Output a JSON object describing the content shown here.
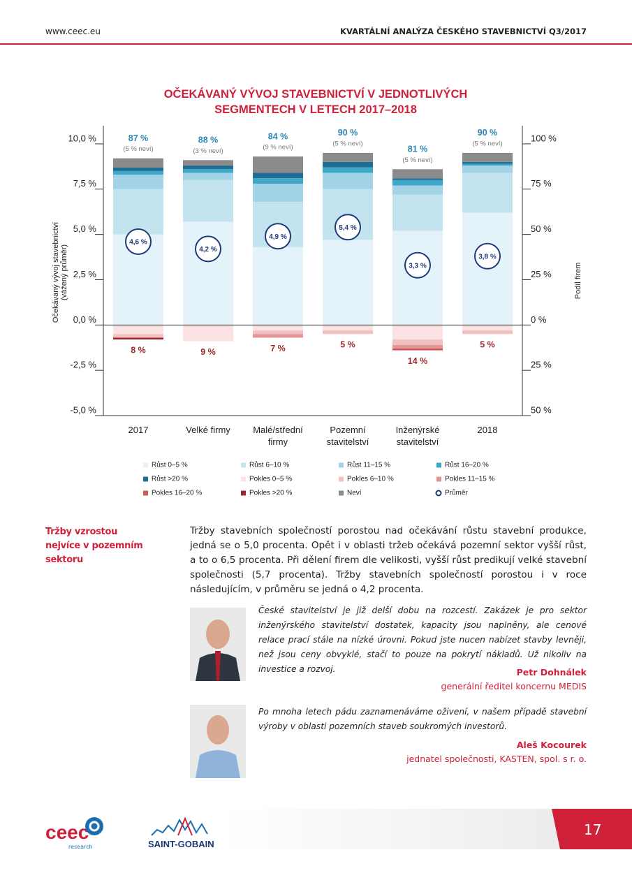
{
  "header": {
    "url": "www.ceec.eu",
    "title": "KVARTÁLNÍ ANALÝZA ČESKÉHO STAVEBNICTVÍ Q3/2017"
  },
  "chart_data": {
    "type": "bar",
    "stacked": true,
    "title": "OČEKÁVANÝ VÝVOJ STAVEBNICTVÍ V JEDNOTLIVÝCH SEGMENTECH V LETECH 2017–2018",
    "y_label": [
      "Očekávaný vývoj stavebnictví",
      "(vážený průměr)"
    ],
    "y2_label": "Podíl firem",
    "categories": [
      "2017",
      "Velké firmy",
      "Malé/střední firmy",
      "Pozemní stavitelství",
      "Inženýrské stavitelství",
      "2018"
    ],
    "ylim": [
      -5,
      11
    ],
    "yticks": [
      {
        "value": -5,
        "label": "-5,0 %"
      },
      {
        "value": -2.5,
        "label": "-2,5 %"
      },
      {
        "value": 0,
        "label": "0,0 %"
      },
      {
        "value": 2.5,
        "label": "2,5 %"
      },
      {
        "value": 5,
        "label": "5,0 %"
      },
      {
        "value": 7.5,
        "label": "7,5 %"
      },
      {
        "value": 10,
        "label": "10,0 %"
      }
    ],
    "y2lim": [
      -50,
      110
    ],
    "y2ticks": [
      {
        "value": -50,
        "label": "50 %"
      },
      {
        "value": -25,
        "label": "25 %"
      },
      {
        "value": 0,
        "label": "0 %"
      },
      {
        "value": 25,
        "label": "25 %"
      },
      {
        "value": 50,
        "label": "50 %"
      },
      {
        "value": 75,
        "label": "75 %"
      },
      {
        "value": 100,
        "label": "100 %"
      }
    ],
    "series": [
      {
        "name": "Růst 0–5 %",
        "color": "#e4f2fa",
        "axis": "y2",
        "values": [
          50,
          57,
          43,
          47,
          52,
          62
        ]
      },
      {
        "name": "Růst 6–10 %",
        "color": "#c3e3ef",
        "axis": "y2",
        "values": [
          25,
          23,
          25,
          28,
          20,
          22
        ]
      },
      {
        "name": "Růst 11–15 %",
        "color": "#a2d3e7",
        "axis": "y2",
        "values": [
          8,
          4,
          10,
          9,
          5,
          4
        ]
      },
      {
        "name": "Růst 16–20 %",
        "color": "#3fa8c8",
        "axis": "y2",
        "values": [
          2,
          2,
          3,
          3,
          3,
          1
        ]
      },
      {
        "name": "Růst >20 %",
        "color": "#1f6e93",
        "axis": "y2",
        "values": [
          2,
          2,
          3,
          3,
          1,
          1
        ]
      },
      {
        "name": "Pokles 0–5 %",
        "color": "#fbe3e4",
        "axis": "y2",
        "values": [
          -5,
          -9,
          -3,
          -3,
          -8,
          -3
        ]
      },
      {
        "name": "Pokles 6–10 %",
        "color": "#f2c1c2",
        "axis": "y2",
        "values": [
          -2,
          0,
          -2,
          -2,
          -3,
          -2
        ]
      },
      {
        "name": "Pokles 11–15 %",
        "color": "#e39596",
        "axis": "y2",
        "values": [
          0,
          0,
          -2,
          0,
          -2,
          0
        ]
      },
      {
        "name": "Pokles 16–20 %",
        "color": "#cf5a5b",
        "axis": "y2",
        "values": [
          0,
          0,
          0,
          0,
          -1,
          0
        ]
      },
      {
        "name": "Pokles >20 %",
        "color": "#9c2a2c",
        "axis": "y2",
        "values": [
          -1,
          0,
          0,
          0,
          0,
          0
        ]
      },
      {
        "name": "Neví",
        "color": "#8b8b8b",
        "axis": "y2",
        "values": [
          5,
          3,
          9,
          5,
          5,
          5
        ]
      },
      {
        "name": "Průměr",
        "color": "#1e3a7a",
        "axis": "y",
        "type": "marker",
        "values": [
          4.6,
          4.2,
          4.9,
          5.4,
          3.3,
          3.8
        ],
        "value_labels": [
          "4,6 %",
          "4,2 %",
          "4,9 %",
          "5,4 %",
          "3,3 %",
          "3,8 %"
        ]
      }
    ],
    "growth_labels": [
      "87 %",
      "88 %",
      "84 %",
      "90 %",
      "81 %",
      "90 %"
    ],
    "unknown_labels": [
      "(5 % neví)",
      "(3 % neví)",
      "(9 % neví)",
      "(5 % neví)",
      "(5 % neví)",
      "(5 % neví)"
    ],
    "decline_labels": [
      "8 %",
      "9 %",
      "7 %",
      "5 %",
      "14 %",
      "5 %"
    ]
  },
  "section": {
    "heading": "Tržby vzrostou nejvíce v pozemním sektoru",
    "text": "Tržby stavebních společností porostou nad očekávání růstu stavební produkce, jedná se o 5,0 procenta. Opět i v oblasti tržeb očekává pozemní sektor vyšší růst, a to o 6,5 procenta. Při dělení firem dle velikosti, vyšší růst predikují velké stavební společnosti (5,7 procenta). Tržby stavebních společností porostou i v roce následujícím, v průměru se jedná o 4,2 procenta."
  },
  "quotes": [
    {
      "text": "České stavitelství je již delší dobu na rozcestí. Zakázek je pro sektor inženýrského stavitelství dostatek, kapacity jsou naplněny, ale cenové relace prací stále na nízké úrovni. Pokud jste nucen nabízet stavby levněji, než jsou ceny obvyklé, stačí to pouze na pokrytí nákladů. Už nikoliv na investice a rozvoj.",
      "name": "Petr Dohnálek",
      "role": "generální ředitel koncernu MEDIS"
    },
    {
      "text": "Po mnoha letech pádu zaznamenáváme oživení, v našem případě stavební výroby v oblasti pozemních staveb soukromých investorů.",
      "name": "Aleš Kocourek",
      "role": "jednatel společnosti, KASTEN, spol. s r. o."
    }
  ],
  "footer": {
    "logo1": "ceec",
    "logo1_sub": "research",
    "logo2": "SAINT-GOBAIN",
    "page": "17"
  }
}
